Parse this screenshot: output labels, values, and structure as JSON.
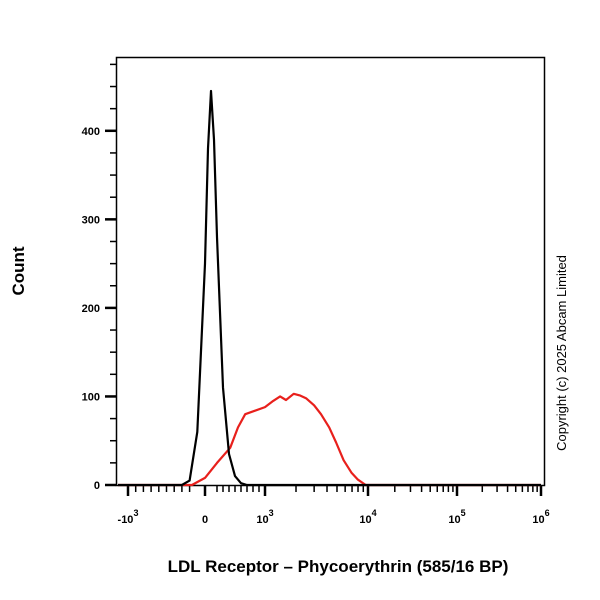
{
  "chart_data": {
    "type": "line",
    "title": "",
    "xlabel": "LDL Receptor – Phycoerythrin (585/16 BP)",
    "ylabel": "Count",
    "x_scale": "biexponential",
    "xlim": [
      -1500,
      1000000
    ],
    "ylim": [
      0,
      482
    ],
    "x_ticks": [
      {
        "value": -1000,
        "base": "-10",
        "exp": "3"
      },
      {
        "value": 0,
        "base": "0",
        "exp": ""
      },
      {
        "value": 1000,
        "base": "10",
        "exp": "3"
      },
      {
        "value": 10000,
        "base": "10",
        "exp": "4"
      },
      {
        "value": 100000,
        "base": "10",
        "exp": "5"
      },
      {
        "value": 1000000,
        "base": "10",
        "exp": "6"
      }
    ],
    "y_ticks": [
      0,
      100,
      200,
      300,
      400
    ],
    "grid": false,
    "legend": "none",
    "series": [
      {
        "color": "#000000",
        "x": [
          -1500,
          -300,
          -200,
          -100,
          0,
          50,
          100,
          150,
          200,
          300,
          400,
          500,
          600,
          700,
          1000000
        ],
        "y": [
          0,
          0,
          5,
          60,
          250,
          380,
          445,
          390,
          280,
          110,
          35,
          10,
          2,
          0,
          0
        ]
      },
      {
        "color": "#e8201c",
        "x": [
          -1500,
          -170,
          0,
          200,
          420,
          550,
          670,
          1000,
          1200,
          1400,
          1600,
          1900,
          2200,
          2500,
          3000,
          3500,
          4200,
          4900,
          5800,
          6900,
          8000,
          9500,
          1000000
        ],
        "y": [
          0,
          0,
          8,
          25,
          42,
          65,
          80,
          88,
          95,
          100,
          96,
          103,
          101,
          98,
          90,
          80,
          65,
          48,
          28,
          14,
          6,
          0,
          0
        ]
      }
    ]
  },
  "copyright": "Copyright (c) 2025 Abcam Limited"
}
